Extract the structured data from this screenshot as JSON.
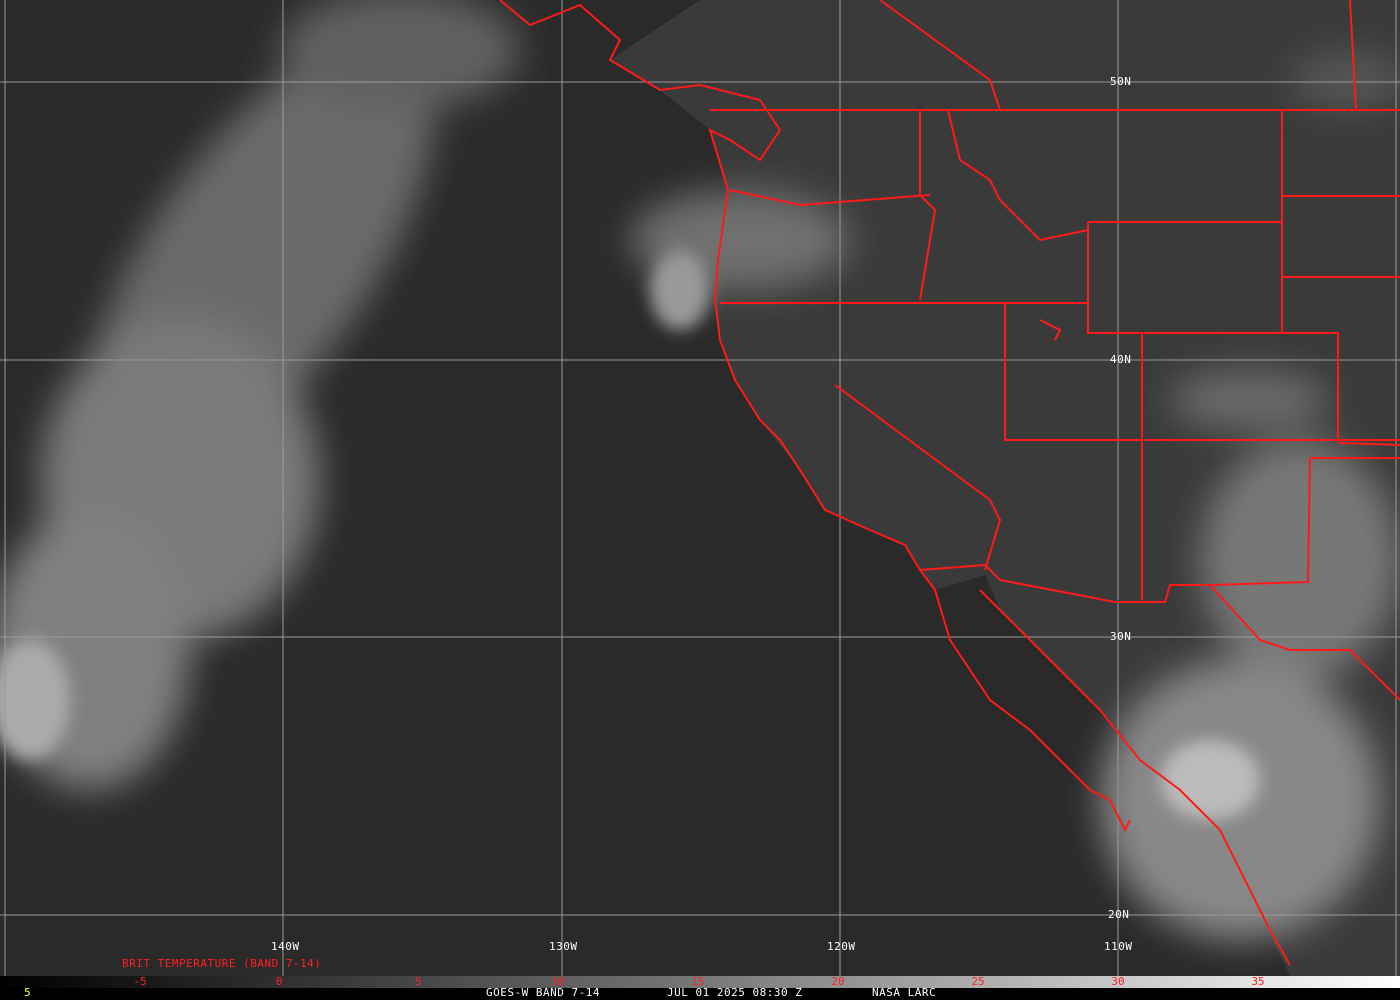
{
  "image": {
    "description_type": "GOES-West satellite infrared imagery",
    "colors": {
      "coastline": "#ff1a1a",
      "grid": "#a0a0a0",
      "background": "#2b2b2b",
      "frame_number": "#ffff33"
    }
  },
  "grid": {
    "longitude_labels": [
      "140W",
      "130W",
      "120W",
      "110W"
    ],
    "latitude_labels": [
      "50N",
      "40N",
      "30N",
      "20N"
    ]
  },
  "colorbar": {
    "title": "BRIT TEMPERATURE (BAND 7-14)",
    "ticks": [
      "-5",
      "0",
      "5",
      "10",
      "15",
      "20",
      "25",
      "30",
      "35"
    ]
  },
  "footer": {
    "frame_number": "5",
    "product": "GOES-W BAND 7-14",
    "datetime": "JUL 01 2025 08:30 Z",
    "source": "NASA LARC"
  }
}
